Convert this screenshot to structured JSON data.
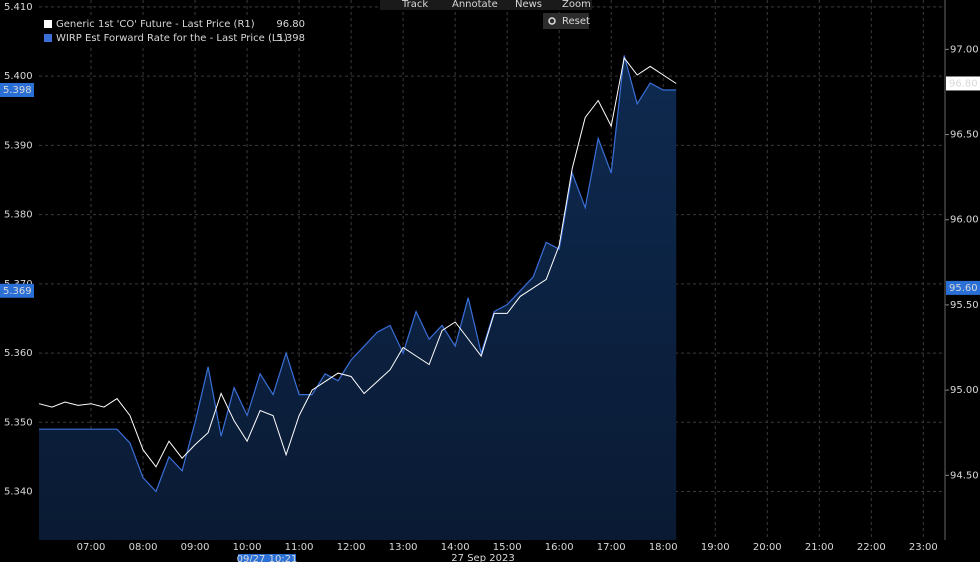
{
  "chart_data": {
    "type": "line",
    "x": [
      "06:00",
      "06:15",
      "06:30",
      "06:45",
      "07:00",
      "07:15",
      "07:30",
      "07:45",
      "08:00",
      "08:15",
      "08:30",
      "08:45",
      "09:00",
      "09:15",
      "09:30",
      "09:45",
      "10:00",
      "10:15",
      "10:30",
      "10:45",
      "11:00",
      "11:15",
      "11:30",
      "11:45",
      "12:00",
      "12:15",
      "12:30",
      "12:45",
      "13:00",
      "13:15",
      "13:30",
      "13:45",
      "14:00",
      "14:15",
      "14:30",
      "14:45",
      "15:00",
      "15:15",
      "15:30",
      "15:45",
      "16:00",
      "16:15",
      "16:30",
      "16:45",
      "17:00",
      "17:15",
      "17:30",
      "17:45",
      "18:00",
      "18:15"
    ],
    "series": [
      {
        "name": "Generic 1st 'CO' Future - Last Price (R1)",
        "legend_value": "96.80",
        "color": "#ffffff",
        "axis": "y2",
        "values": [
          94.92,
          94.9,
          94.93,
          94.91,
          94.92,
          94.9,
          94.95,
          94.85,
          94.65,
          94.55,
          94.7,
          94.6,
          94.68,
          94.75,
          94.98,
          94.82,
          94.7,
          94.88,
          94.85,
          94.62,
          94.85,
          95.0,
          95.05,
          95.1,
          95.08,
          94.98,
          95.05,
          95.12,
          95.25,
          95.2,
          95.15,
          95.35,
          95.4,
          95.3,
          95.2,
          95.45,
          95.45,
          95.55,
          95.6,
          95.65,
          95.85,
          96.3,
          96.6,
          96.7,
          96.55,
          96.95,
          96.85,
          96.9,
          96.85,
          96.8
        ]
      },
      {
        "name": "WIRP Est Forward Rate for the - Last Price (L1)",
        "legend_value": "5.398",
        "color": "#3a6fd8",
        "area": true,
        "values": [
          5.349,
          5.349,
          5.349,
          5.349,
          5.349,
          5.349,
          5.349,
          5.347,
          5.342,
          5.34,
          5.345,
          5.343,
          5.35,
          5.358,
          5.348,
          5.355,
          5.351,
          5.357,
          5.354,
          5.36,
          5.354,
          5.354,
          5.357,
          5.356,
          5.359,
          5.361,
          5.363,
          5.364,
          5.36,
          5.366,
          5.362,
          5.364,
          5.361,
          5.368,
          5.36,
          5.366,
          5.367,
          5.369,
          5.371,
          5.376,
          5.375,
          5.386,
          5.381,
          5.391,
          5.386,
          5.403,
          5.396,
          5.399,
          5.398,
          5.398
        ]
      }
    ],
    "xlim": [
      "06:00",
      "23:25"
    ],
    "xticks": [
      "07:00",
      "08:00",
      "09:00",
      "10:00",
      "11:00",
      "12:00",
      "13:00",
      "14:00",
      "15:00",
      "16:00",
      "17:00",
      "18:00",
      "19:00",
      "20:00",
      "21:00",
      "22:00",
      "23:00"
    ],
    "ylim": [
      5.333,
      5.411
    ],
    "yticks": [
      {
        "value": 5.34,
        "label": "5.340"
      },
      {
        "value": 5.35,
        "label": "5.350"
      },
      {
        "value": 5.36,
        "label": "5.360"
      },
      {
        "value": 5.37,
        "label": "5.370"
      },
      {
        "value": 5.38,
        "label": "5.380"
      },
      {
        "value": 5.39,
        "label": "5.390"
      },
      {
        "value": 5.4,
        "label": "5.400"
      },
      {
        "value": 5.41,
        "label": "5.410"
      }
    ],
    "y2lim": [
      94.12,
      97.29
    ],
    "y2ticks": [
      {
        "value": 94.5,
        "label": "94.50"
      },
      {
        "value": 95,
        "label": "95.00"
      },
      {
        "value": 95.5,
        "label": "95.50"
      },
      {
        "value": 96,
        "label": "96.00"
      },
      {
        "value": 96.5,
        "label": "96.50"
      },
      {
        "value": 97,
        "label": "97.00"
      }
    ],
    "y_tags": [
      {
        "value": 5.398,
        "label": "5.398"
      },
      {
        "value": 5.369,
        "label": "5.369"
      }
    ],
    "y2_tags": [
      {
        "value": 96.8,
        "label": "96.80"
      },
      {
        "value": 95.6,
        "label": "95.60"
      }
    ],
    "cursor_label": "09/27 10:21",
    "date_label": "27 Sep 2023",
    "grid": true
  },
  "toolbar": {
    "items": [
      "Track",
      "Annotate",
      "News",
      "Zoom"
    ],
    "reset": "Reset"
  }
}
